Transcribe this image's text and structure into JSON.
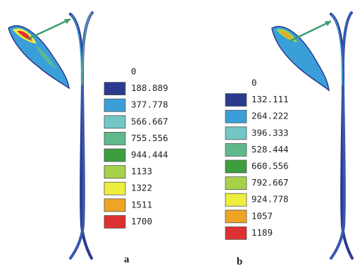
{
  "legend_colors": [
    "#2b3a8e",
    "#3a9fd9",
    "#72c6c6",
    "#5fb98c",
    "#3c9e3c",
    "#a6d148",
    "#eeee3e",
    "#efa424",
    "#de3030"
  ],
  "panels": [
    {
      "label": "a",
      "legend": [
        "0",
        "188.889",
        "377.778",
        "566.667",
        "755.556",
        "944.444",
        "1133",
        "1322",
        "1511",
        "1700"
      ]
    },
    {
      "label": "b",
      "legend": [
        "0",
        "132.111",
        "264.222",
        "396.333",
        "528.444",
        "660.556",
        "792.667",
        "924.778",
        "1057",
        "1189"
      ]
    }
  ]
}
